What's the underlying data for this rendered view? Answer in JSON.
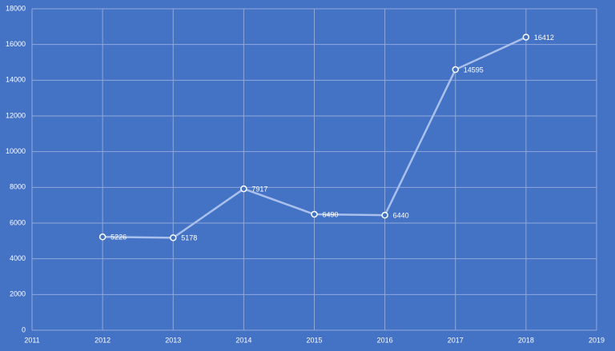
{
  "chart_data": {
    "type": "line",
    "x": [
      2012,
      2013,
      2014,
      2015,
      2016,
      2017,
      2018
    ],
    "values": [
      5226,
      5178,
      7917,
      6490,
      6440,
      14595,
      16412
    ],
    "color": "#a9c0ec",
    "marker_color": "#ffffff",
    "xlim": [
      2011,
      2019
    ],
    "xticks": [
      2011,
      2012,
      2013,
      2014,
      2015,
      2016,
      2017,
      2018,
      2019
    ],
    "ylim": [
      0,
      18000
    ],
    "yticks": [
      0,
      2000,
      4000,
      6000,
      8000,
      10000,
      12000,
      14000,
      16000,
      18000
    ],
    "grid": true
  }
}
